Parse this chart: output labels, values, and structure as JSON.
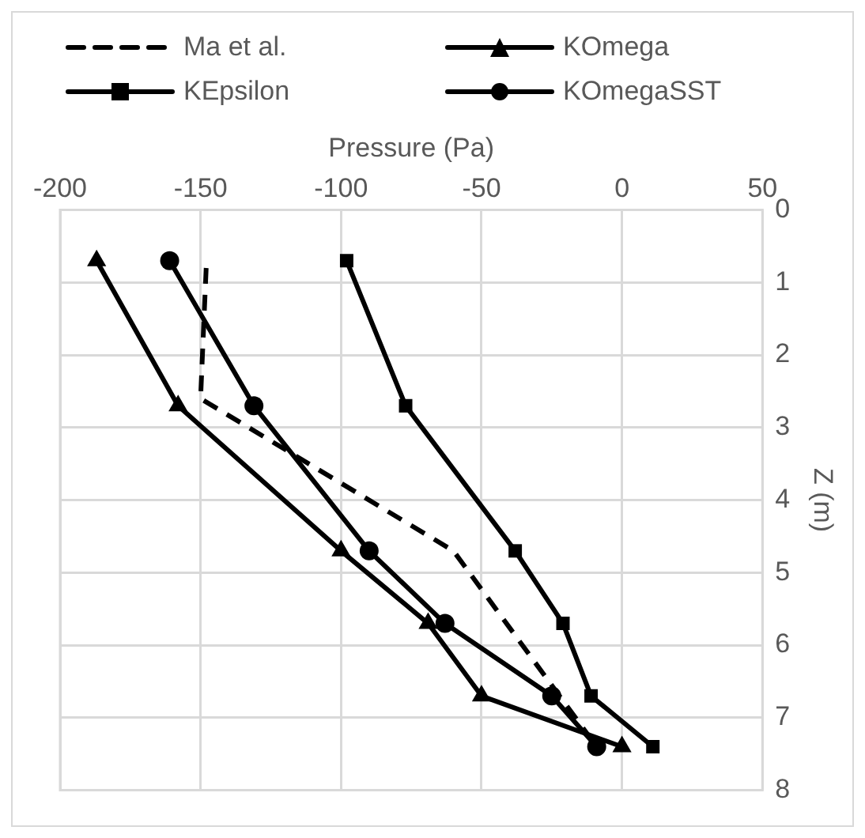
{
  "chart_data": {
    "type": "line",
    "xlabel": "Pressure (Pa)",
    "ylabel": "Z (m)",
    "xlim": [
      -200,
      50
    ],
    "xticks": [
      -200,
      -150,
      -100,
      -50,
      0,
      50
    ],
    "ylim": [
      8,
      0
    ],
    "yticks": [
      0,
      1,
      2,
      3,
      4,
      5,
      6,
      7,
      8
    ],
    "grid": true,
    "legend": "top",
    "series": [
      {
        "name": "Ma et al.",
        "color": "#000000",
        "marker": "none",
        "line_style": "dashed",
        "x": [
          -148,
          -150,
          -60,
          -9
        ],
        "values": [
          0.8,
          2.6,
          4.7,
          7.4
        ]
      },
      {
        "name": "KOmega",
        "color": "#000000",
        "marker": "triangle",
        "line_style": "solid",
        "x": [
          -187,
          -158,
          -100,
          -69,
          -50,
          0
        ],
        "values": [
          0.7,
          2.7,
          4.7,
          5.7,
          6.7,
          7.4
        ]
      },
      {
        "name": "KEpsilon",
        "color": "#000000",
        "marker": "square",
        "line_style": "solid",
        "x": [
          -98,
          -77,
          -38,
          -21,
          -11,
          11
        ],
        "values": [
          0.7,
          2.7,
          4.7,
          5.7,
          6.7,
          7.4
        ]
      },
      {
        "name": "KOmegaSST",
        "color": "#000000",
        "marker": "circle",
        "line_style": "solid",
        "x": [
          -161,
          -131,
          -90,
          -63,
          -25,
          -9
        ],
        "values": [
          0.7,
          2.7,
          4.7,
          5.7,
          6.7,
          7.4
        ]
      }
    ]
  }
}
